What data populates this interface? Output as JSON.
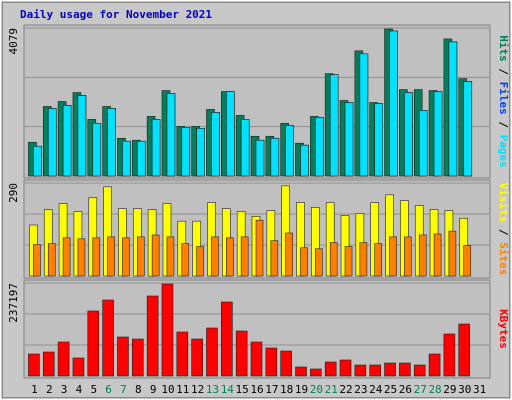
{
  "title": "Daily usage for November 2021",
  "legend_separator": " / ",
  "weekend_color": "#00805C",
  "weekend_indices": [
    5,
    6,
    12,
    13,
    19,
    20,
    26,
    27
  ],
  "chart_data": [
    {
      "type": "bar",
      "ylim": [
        0,
        4079
      ],
      "yticks": [
        4079
      ],
      "series": [
        {
          "name": "Pages",
          "color": "#00E0FF",
          "values": [
            821,
            1862,
            1944,
            2218,
            1451,
            1862,
            958,
            958,
            1561,
            2273,
            1342,
            1314,
            1752,
            2327,
            1561,
            986,
            1040,
            1396,
            849,
            1615,
            2793,
            2026,
            3368,
            1999,
            3997,
            2300,
            1807,
            2327,
            3696,
            2601,
            null
          ]
        },
        {
          "name": "Files",
          "color": "#0040FF",
          "values": [
            821,
            1862,
            1944,
            2218,
            1451,
            1862,
            958,
            958,
            1561,
            2273,
            1342,
            1314,
            1752,
            2327,
            1561,
            986,
            1040,
            1396,
            849,
            1615,
            2793,
            2026,
            3368,
            1999,
            3997,
            2300,
            1807,
            2327,
            3696,
            2601,
            null
          ]
        },
        {
          "name": "Hits",
          "color": "#00805C",
          "values": [
            931,
            1917,
            2054,
            2300,
            1561,
            1917,
            1040,
            986,
            1643,
            2355,
            1369,
            1369,
            1834,
            2327,
            1670,
            1095,
            1095,
            1451,
            904,
            1643,
            2820,
            2081,
            3450,
            2026,
            4052,
            2382,
            2382,
            2355,
            3778,
            2683,
            null
          ]
        }
      ]
    },
    {
      "type": "bar",
      "ylim": [
        0,
        290
      ],
      "yticks": [
        290
      ],
      "series": [
        {
          "name": "Sites",
          "color": "#FF8000",
          "values": [
            98,
            101,
            119,
            116,
            119,
            122,
            119,
            122,
            128,
            122,
            101,
            92,
            122,
            119,
            122,
            174,
            110,
            134,
            88,
            85,
            104,
            92,
            104,
            101,
            122,
            122,
            128,
            131,
            140,
            95,
            null
          ]
        },
        {
          "name": "Visits",
          "color": "#FFFF00",
          "values": [
            159,
            207,
            226,
            201,
            244,
            278,
            210,
            210,
            207,
            226,
            171,
            171,
            229,
            210,
            201,
            186,
            204,
            281,
            229,
            214,
            229,
            189,
            195,
            229,
            253,
            235,
            220,
            207,
            204,
            180,
            null
          ]
        }
      ]
    },
    {
      "type": "bar",
      "ylim": [
        0,
        237197
      ],
      "yticks": [
        237197
      ],
      "categories": [
        "1",
        "2",
        "3",
        "4",
        "5",
        "6",
        "7",
        "8",
        "9",
        "10",
        "11",
        "12",
        "13",
        "14",
        "15",
        "16",
        "17",
        "18",
        "19",
        "20",
        "21",
        "22",
        "23",
        "24",
        "25",
        "26",
        "27",
        "28",
        "29",
        "30",
        "31"
      ],
      "series": [
        {
          "name": "KBytes",
          "color": "#FF0000",
          "values": [
            56111,
            61212,
            86717,
            45909,
            165783,
            193838,
            99470,
            94369,
            204040,
            234646,
            112222,
            94369,
            122424,
            188737,
            114773,
            86717,
            71414,
            63763,
            22955,
            17854,
            35707,
            40808,
            28056,
            28056,
            33157,
            33157,
            28056,
            56111,
            107121,
            132626,
            null
          ]
        }
      ]
    }
  ]
}
